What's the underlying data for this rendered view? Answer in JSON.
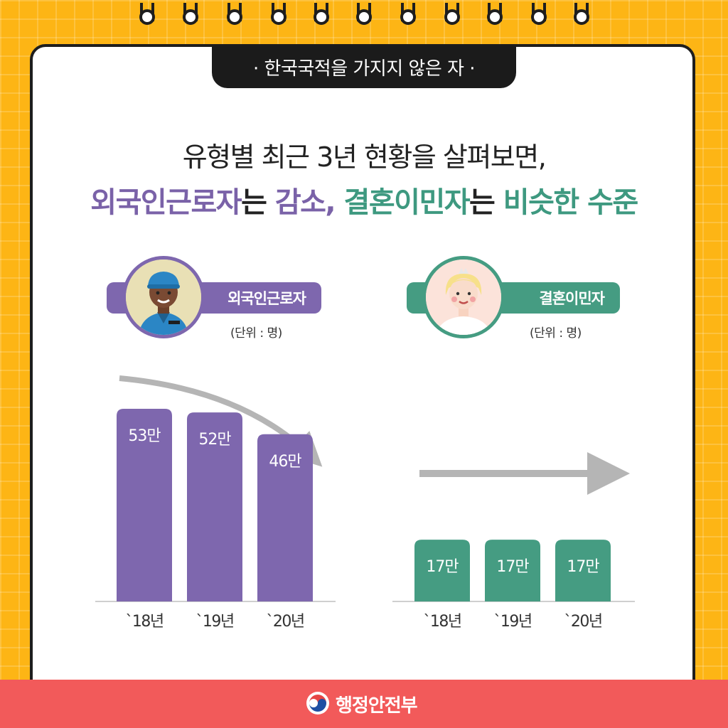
{
  "header_tag": "· 한국국적을 가지지 않은 자 ·",
  "headline": {
    "line1": "유형별 최근 3년 현황을 살펴보면,",
    "line2": {
      "part1": "외국인근로자",
      "part2": "는 ",
      "part3": "감소,",
      "part4": " ",
      "part5": "결혼이민자",
      "part6": "는 ",
      "part7": "비슷한 수준"
    }
  },
  "footer": {
    "org": "행정안전부"
  },
  "colors": {
    "purple": "#7E67AE",
    "green": "#459C82",
    "background": "#FDB515",
    "footer": "#F25A5A"
  },
  "icons": {
    "left_avatar": "worker-avatar",
    "right_avatar": "bride-avatar",
    "emblem": "taegeuk-emblem-icon"
  },
  "chart_data": [
    {
      "type": "bar",
      "title": "외국인근로자",
      "unit": "(단위 : 명)",
      "categories": [
        "`18년",
        "`19년",
        "`20년"
      ],
      "values": [
        53,
        52,
        46
      ],
      "value_labels": [
        "53만",
        "52만",
        "46만"
      ],
      "trend": "down",
      "color": "#7E67AE"
    },
    {
      "type": "bar",
      "title": "결혼이민자",
      "unit": "(단위 : 명)",
      "categories": [
        "`18년",
        "`19년",
        "`20년"
      ],
      "values": [
        17,
        17,
        17
      ],
      "value_labels": [
        "17만",
        "17만",
        "17만"
      ],
      "trend": "flat",
      "color": "#459C82"
    }
  ]
}
